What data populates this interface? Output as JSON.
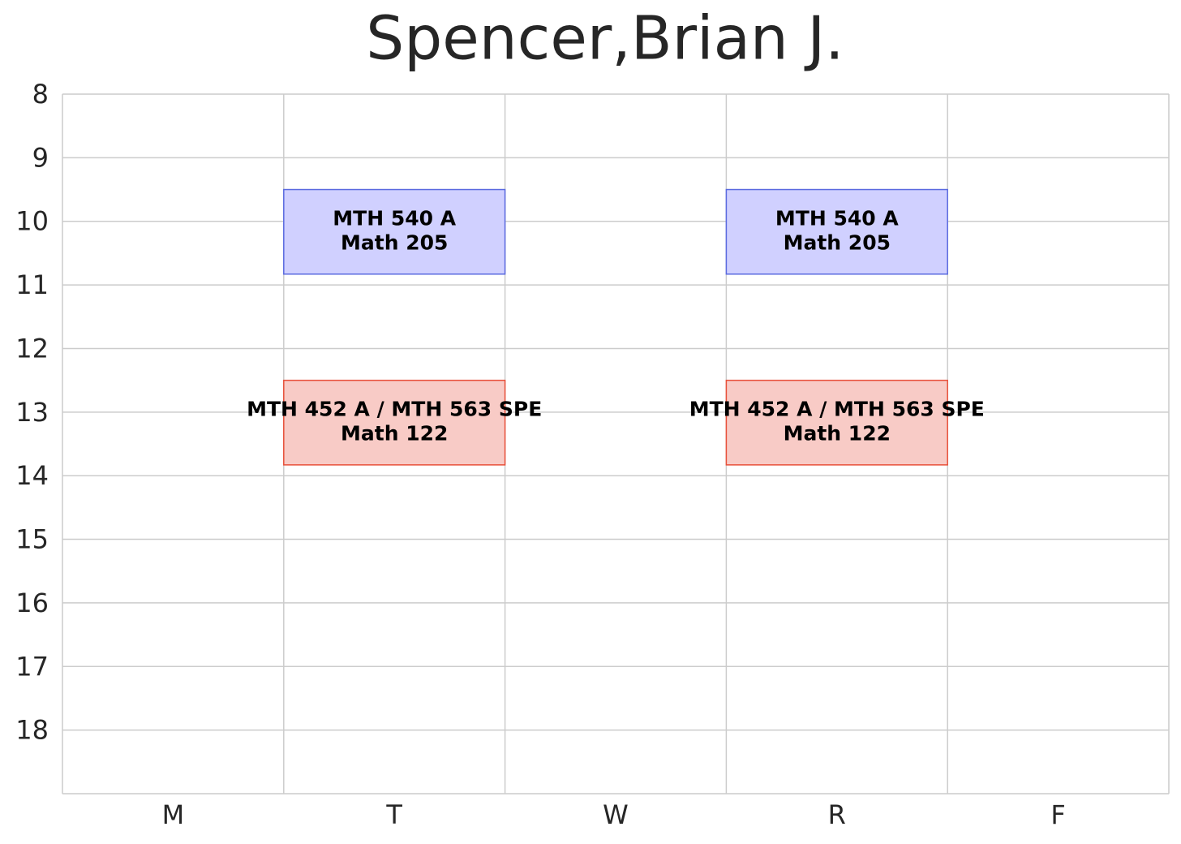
{
  "chart_data": {
    "type": "schedule",
    "title": "Spencer,Brian J.",
    "categories": [
      "M",
      "T",
      "W",
      "R",
      "F"
    ],
    "ylim": [
      8,
      19
    ],
    "y_inverted": true,
    "yticks": [
      8,
      9,
      10,
      11,
      12,
      13,
      14,
      15,
      16,
      17,
      18
    ],
    "grid": true,
    "events": [
      {
        "day": "T",
        "start": 9.5,
        "end": 10.83,
        "course": "MTH 540 A",
        "room": "Math 205",
        "color": "#d0d0ff",
        "edge": "#5a6ae0"
      },
      {
        "day": "R",
        "start": 9.5,
        "end": 10.83,
        "course": "MTH 540 A",
        "room": "Math 205",
        "color": "#d0d0ff",
        "edge": "#5a6ae0"
      },
      {
        "day": "T",
        "start": 12.5,
        "end": 13.83,
        "course": "MTH 452 A / MTH 563 SPE",
        "room": "Math 122",
        "color": "#f8cbc6",
        "edge": "#e8503a"
      },
      {
        "day": "R",
        "start": 12.5,
        "end": 13.83,
        "course": "MTH 452 A / MTH 563 SPE",
        "room": "Math 122",
        "color": "#f8cbc6",
        "edge": "#e8503a"
      }
    ]
  }
}
